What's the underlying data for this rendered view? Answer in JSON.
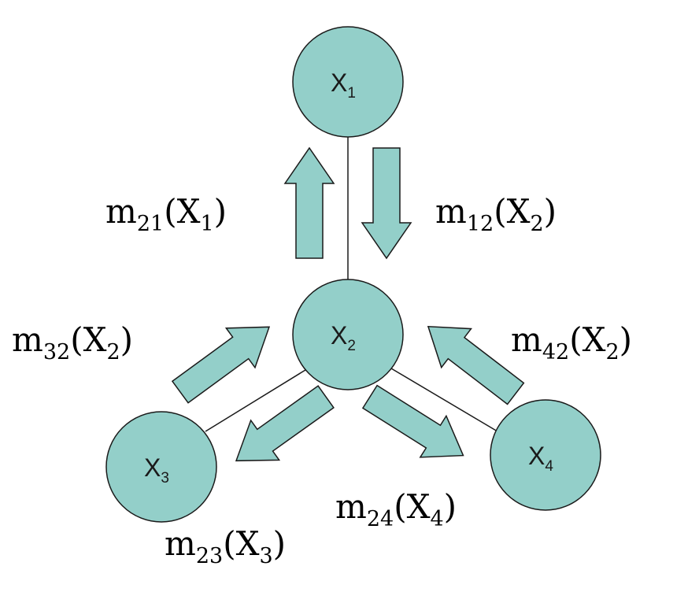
{
  "nodes": [
    {
      "id": "x1",
      "letter": "X",
      "sub": "1"
    },
    {
      "id": "x2",
      "letter": "X",
      "sub": "2"
    },
    {
      "id": "x3",
      "letter": "X",
      "sub": "3"
    },
    {
      "id": "x4",
      "letter": "X",
      "sub": "4"
    }
  ],
  "messages": [
    {
      "id": "m21",
      "prefix": "m",
      "indices": "21",
      "var": "X",
      "var_sub": "1"
    },
    {
      "id": "m12",
      "prefix": "m",
      "indices": "12",
      "var": "X",
      "var_sub": "2"
    },
    {
      "id": "m32",
      "prefix": "m",
      "indices": "32",
      "var": "X",
      "var_sub": "2"
    },
    {
      "id": "m42",
      "prefix": "m",
      "indices": "42",
      "var": "X",
      "var_sub": "2"
    },
    {
      "id": "m24",
      "prefix": "m",
      "indices": "24",
      "var": "X",
      "var_sub": "4"
    },
    {
      "id": "m23",
      "prefix": "m",
      "indices": "23",
      "var": "X",
      "var_sub": "3"
    }
  ],
  "colors": {
    "node_fill": "#93cfc9",
    "arrow_fill": "#93cfc9",
    "stroke": "#1a1a1a"
  }
}
